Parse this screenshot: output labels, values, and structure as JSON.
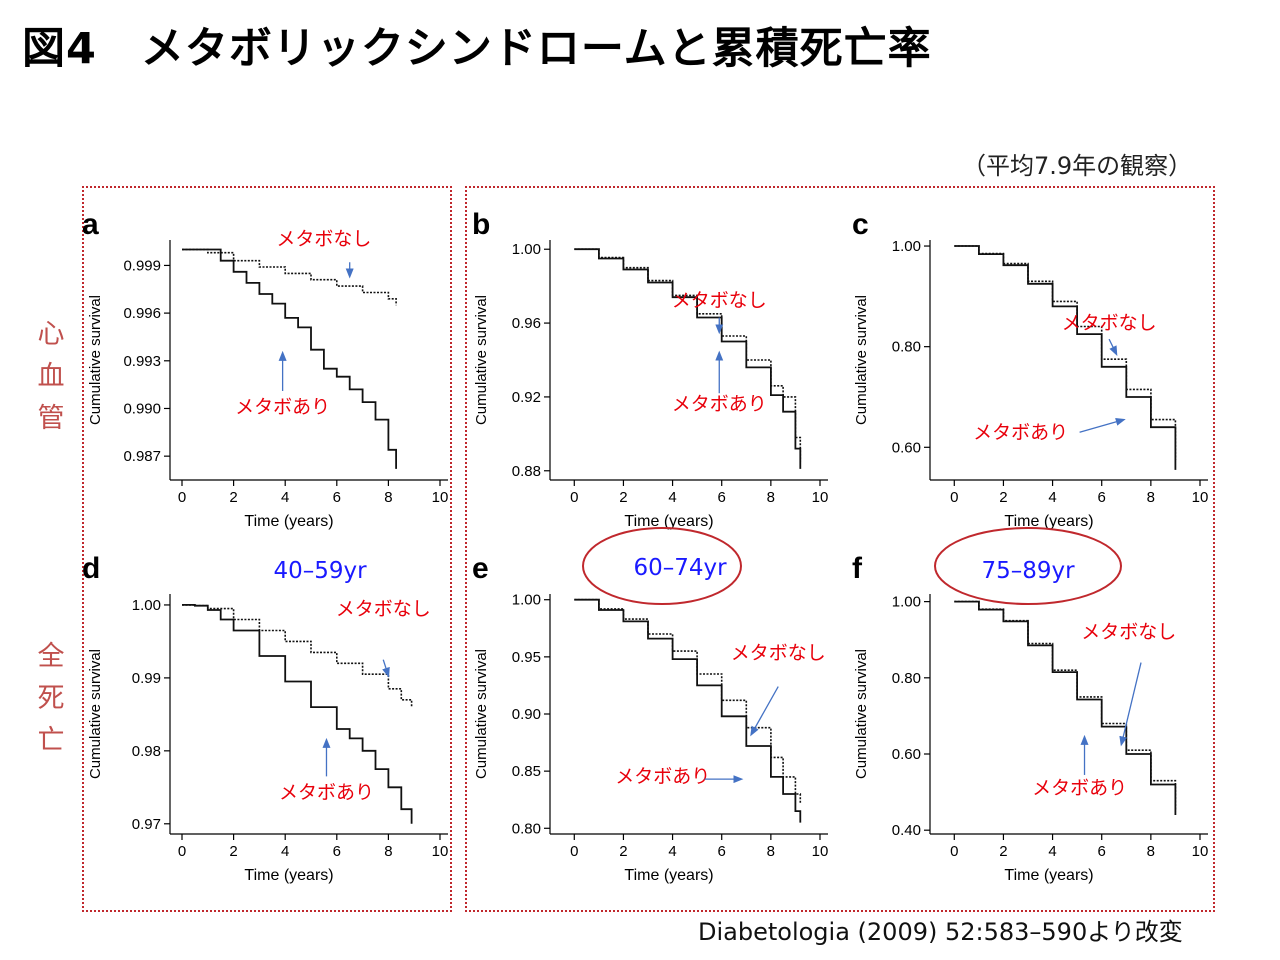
{
  "slide": {
    "title": "図4　メタボリックシンドロームと累積死亡率",
    "period_note": "（平均7.9年の観察）",
    "citation": "Diabetologia (2009) 52:583–590より改変",
    "row_labels": [
      "心血管",
      "全死亡"
    ],
    "age_groups": [
      "40–59yr",
      "60–74yr",
      "75–89yr"
    ]
  },
  "colors": {
    "annotation_text": "#e8000b",
    "arrow": "#4472c4",
    "age_text": "#1a1aff",
    "ellipse": "#c0282d",
    "row_label": "#c0504d",
    "box_border": "#c0282d",
    "curve": "#111111"
  },
  "chart_data": [
    {
      "panel": "a",
      "type": "line",
      "xlabel": "Time (years)",
      "ylabel": "Cumulative survival",
      "xlim": [
        0,
        10
      ],
      "ylim": [
        0.9855,
        1.0006
      ],
      "xticks": [
        0,
        2,
        4,
        6,
        8,
        10
      ],
      "yticks": [
        0.999,
        0.996,
        0.993,
        0.99,
        0.987
      ],
      "ytick_labels": [
        "0.999",
        "0.996",
        "0.993",
        "0.990",
        "0.987"
      ],
      "series": [
        {
          "label": "メタボなし",
          "x": [
            0,
            1,
            2,
            3,
            4,
            5,
            6,
            7,
            8,
            8.3
          ],
          "y": [
            1.0,
            0.9998,
            0.9993,
            0.9989,
            0.9985,
            0.9981,
            0.9977,
            0.9973,
            0.9969,
            0.9965
          ]
        },
        {
          "label": "メタボあり",
          "x": [
            0,
            1.2,
            1.5,
            2,
            2.5,
            3,
            3.5,
            4,
            4.5,
            5,
            5.5,
            6,
            6.5,
            7,
            7.5,
            8,
            8.3
          ],
          "y": [
            1.0,
            1.0,
            0.9993,
            0.9986,
            0.9979,
            0.9972,
            0.9966,
            0.9957,
            0.9951,
            0.9937,
            0.9925,
            0.992,
            0.9912,
            0.9904,
            0.9893,
            0.9874,
            0.9862
          ]
        }
      ],
      "annotations": [
        {
          "text": "メタボなし",
          "x": 5.5,
          "y": 1.0003,
          "arrow_from": [
            6.5,
            0.9992
          ],
          "arrow_to": [
            6.5,
            0.9983
          ]
        },
        {
          "text": "メタボあり",
          "x": 3.9,
          "y": 0.9897,
          "arrow_from": [
            3.9,
            0.9911
          ],
          "arrow_to": [
            3.9,
            0.9935
          ]
        }
      ]
    },
    {
      "panel": "b",
      "type": "line",
      "xlabel": "Time (years)",
      "ylabel": "Cumulative survival",
      "xlim": [
        -0.5,
        10
      ],
      "ylim": [
        0.875,
        1.005
      ],
      "xticks": [
        0,
        2,
        4,
        6,
        8,
        10
      ],
      "yticks": [
        1.0,
        0.96,
        0.92,
        0.88
      ],
      "ytick_labels": [
        "1.00",
        "0.96",
        "0.92",
        "0.88"
      ],
      "series": [
        {
          "label": "メタボなし",
          "x": [
            0,
            1,
            2,
            3,
            4,
            5,
            6,
            7,
            8,
            8.5,
            9,
            9.2
          ],
          "y": [
            1.0,
            0.9955,
            0.99,
            0.983,
            0.975,
            0.965,
            0.953,
            0.94,
            0.926,
            0.92,
            0.898,
            0.885
          ]
        },
        {
          "label": "メタボあり",
          "x": [
            0,
            1,
            2,
            3,
            4,
            5,
            6,
            7,
            8,
            8.5,
            9,
            9.2
          ],
          "y": [
            1.0,
            0.995,
            0.989,
            0.982,
            0.974,
            0.963,
            0.95,
            0.936,
            0.921,
            0.912,
            0.892,
            0.881
          ]
        }
      ],
      "annotations": [
        {
          "text": "メタボなし",
          "x": 5.9,
          "y": 0.969,
          "arrow_from": [
            5.9,
            0.963
          ],
          "arrow_to": [
            5.9,
            0.955
          ]
        },
        {
          "text": "メタボあり",
          "x": 5.9,
          "y": 0.913,
          "arrow_from": [
            5.9,
            0.922
          ],
          "arrow_to": [
            5.9,
            0.944
          ]
        }
      ]
    },
    {
      "panel": "c",
      "type": "line",
      "xlabel": "Time (years)",
      "ylabel": "Cumulative survival",
      "xlim": [
        -0.5,
        10
      ],
      "ylim": [
        0.535,
        1.012
      ],
      "xticks": [
        0,
        2,
        4,
        6,
        8,
        10
      ],
      "yticks": [
        1.0,
        0.8,
        0.6
      ],
      "ytick_labels": [
        "1.00",
        "0.80",
        "0.60"
      ],
      "series": [
        {
          "label": "メタボなし",
          "x": [
            0,
            1,
            2,
            3,
            4,
            5,
            6,
            7,
            8,
            9
          ],
          "y": [
            1.0,
            0.985,
            0.965,
            0.93,
            0.89,
            0.84,
            0.775,
            0.715,
            0.655,
            0.575
          ]
        },
        {
          "label": "メタボあり",
          "x": [
            0,
            1,
            2,
            3,
            4,
            5,
            6,
            7,
            8,
            9
          ],
          "y": [
            1.0,
            0.984,
            0.962,
            0.925,
            0.88,
            0.825,
            0.76,
            0.7,
            0.64,
            0.555
          ]
        }
      ],
      "annotations": [
        {
          "text": "メタボなし",
          "x": 6.3,
          "y": 0.835,
          "arrow_from": [
            6.3,
            0.815
          ],
          "arrow_to": [
            6.6,
            0.785
          ]
        },
        {
          "text": "メタボあり",
          "x": 2.7,
          "y": 0.617,
          "arrow_from": [
            5.1,
            0.63
          ],
          "arrow_to": [
            6.9,
            0.655
          ]
        }
      ]
    },
    {
      "panel": "d",
      "type": "line",
      "xlabel": "Time (years)",
      "ylabel": "Cumulative survival",
      "xlim": [
        0,
        10
      ],
      "ylim": [
        0.9686,
        1.0015
      ],
      "xticks": [
        0,
        2,
        4,
        6,
        8,
        10
      ],
      "yticks": [
        1.0,
        0.99,
        0.98,
        0.97
      ],
      "ytick_labels": [
        "1.00",
        "0.99",
        "0.98",
        "0.97"
      ],
      "series": [
        {
          "label": "メタボなし",
          "x": [
            0,
            0.5,
            1,
            2,
            3,
            4,
            5,
            6,
            7,
            8,
            8.5,
            8.9
          ],
          "y": [
            1.0,
            0.9999,
            0.9995,
            0.998,
            0.9965,
            0.995,
            0.9935,
            0.992,
            0.9905,
            0.9885,
            0.987,
            0.986
          ]
        },
        {
          "label": "メタボあり",
          "x": [
            0,
            0.5,
            1,
            1.5,
            2,
            3,
            4,
            5,
            6,
            6.5,
            7,
            7.5,
            8,
            8.5,
            8.9
          ],
          "y": [
            1.0,
            0.9999,
            0.9993,
            0.998,
            0.9965,
            0.993,
            0.9895,
            0.986,
            0.983,
            0.9817,
            0.98,
            0.9775,
            0.975,
            0.972,
            0.97
          ]
        }
      ],
      "annotations": [
        {
          "text": "メタボなし",
          "x": 7.8,
          "y": 0.9986,
          "arrow_from": [
            7.8,
            0.9925
          ],
          "arrow_to": [
            8.0,
            0.9903
          ]
        },
        {
          "text": "メタボあり",
          "x": 5.6,
          "y": 0.9735,
          "arrow_from": [
            5.6,
            0.9765
          ],
          "arrow_to": [
            5.6,
            0.9815
          ]
        }
      ]
    },
    {
      "panel": "e",
      "type": "line",
      "xlabel": "Time (years)",
      "ylabel": "Cumulative survival",
      "xlim": [
        -0.5,
        10
      ],
      "ylim": [
        0.795,
        1.005
      ],
      "xticks": [
        0,
        2,
        4,
        6,
        8,
        10
      ],
      "yticks": [
        1.0,
        0.95,
        0.9,
        0.85,
        0.8
      ],
      "ytick_labels": [
        "1.00",
        "0.95",
        "0.90",
        "0.85",
        "0.80"
      ],
      "series": [
        {
          "label": "メタボなし",
          "x": [
            0,
            1,
            2,
            3,
            4,
            5,
            6,
            7,
            8,
            8.5,
            9,
            9.2
          ],
          "y": [
            1.0,
            0.992,
            0.983,
            0.97,
            0.955,
            0.935,
            0.912,
            0.888,
            0.862,
            0.845,
            0.83,
            0.822
          ]
        },
        {
          "label": "メタボあり",
          "x": [
            0,
            1,
            2,
            3,
            4,
            5,
            6,
            7,
            8,
            8.5,
            9,
            9.2
          ],
          "y": [
            1.0,
            0.991,
            0.981,
            0.966,
            0.948,
            0.925,
            0.898,
            0.872,
            0.845,
            0.83,
            0.815,
            0.805
          ]
        }
      ],
      "annotations": [
        {
          "text": "メタボなし",
          "x": 8.3,
          "y": 0.948,
          "arrow_from": [
            8.3,
            0.924
          ],
          "arrow_to": [
            7.2,
            0.882
          ]
        },
        {
          "text": "メタボあり",
          "x": 3.6,
          "y": 0.84,
          "arrow_from": [
            5.3,
            0.843
          ],
          "arrow_to": [
            6.8,
            0.843
          ]
        }
      ]
    },
    {
      "panel": "f",
      "type": "line",
      "xlabel": "Time (years)",
      "ylabel": "Cumulative survival",
      "xlim": [
        -0.5,
        10
      ],
      "ylim": [
        0.39,
        1.02
      ],
      "xticks": [
        0,
        2,
        4,
        6,
        8,
        10
      ],
      "yticks": [
        1.0,
        0.8,
        0.6,
        0.4
      ],
      "ytick_labels": [
        "1.00",
        "0.80",
        "0.60",
        "0.40"
      ],
      "series": [
        {
          "label": "メタボなし",
          "x": [
            0,
            1,
            2,
            3,
            4,
            5,
            6,
            7,
            8,
            9
          ],
          "y": [
            1.0,
            0.98,
            0.95,
            0.89,
            0.82,
            0.75,
            0.68,
            0.61,
            0.53,
            0.45
          ]
        },
        {
          "label": "メタボあり",
          "x": [
            0,
            1,
            2,
            3,
            4,
            5,
            6,
            7,
            8,
            9
          ],
          "y": [
            1.0,
            0.979,
            0.948,
            0.885,
            0.815,
            0.743,
            0.672,
            0.6,
            0.52,
            0.44
          ]
        }
      ],
      "annotations": [
        {
          "text": "メタボなし",
          "x": 7.1,
          "y": 0.905,
          "arrow_from": [
            7.6,
            0.84
          ],
          "arrow_to": [
            6.8,
            0.625
          ]
        },
        {
          "text": "メタボあり",
          "x": 5.1,
          "y": 0.495,
          "arrow_from": [
            5.3,
            0.545
          ],
          "arrow_to": [
            5.3,
            0.645
          ]
        }
      ]
    }
  ]
}
